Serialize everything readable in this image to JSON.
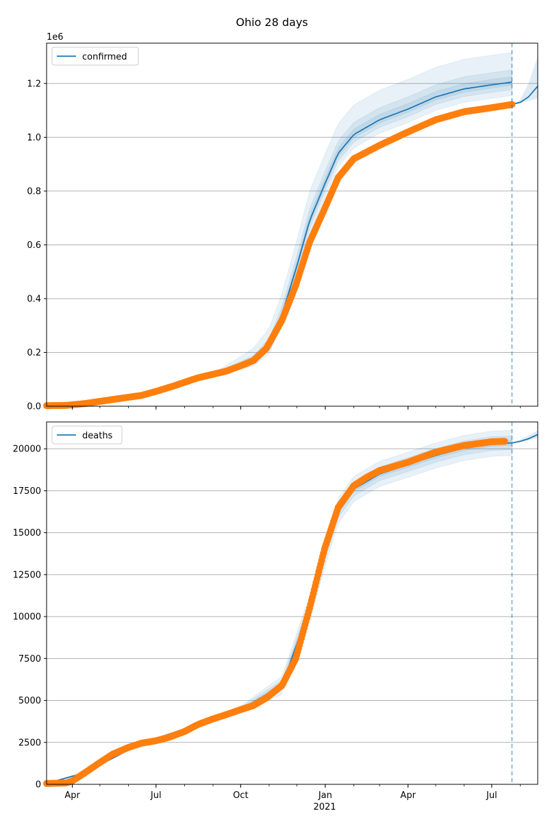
{
  "figure": {
    "title": "Ohio 28 days"
  },
  "colors": {
    "model": "#1f77b4",
    "observed": "#ff7f0e",
    "band": "#1f77b4",
    "grid": "#b0b0b0",
    "forecast_line": "#1f77b4"
  },
  "x_axis": {
    "ticks": [
      {
        "label": "Apr",
        "date": "2020-04-01"
      },
      {
        "label": "Jul",
        "date": "2020-07-01"
      },
      {
        "label": "Oct",
        "date": "2020-10-01"
      },
      {
        "label": "Jan",
        "date": "2021-01-01"
      },
      {
        "label": "Apr",
        "date": "2021-04-01"
      },
      {
        "label": "Jul",
        "date": "2021-07-01"
      }
    ],
    "year_label": "2021",
    "range": [
      "2020-03-04",
      "2021-08-20"
    ],
    "forecast_start": "2021-07-23"
  },
  "chart_data": [
    {
      "type": "line",
      "legend": "confirmed",
      "legend_position": "top-left",
      "grid": "horizontal",
      "exponent_label": "1e6",
      "ylim": [
        0,
        1350000
      ],
      "yticks": [
        {
          "value": 0,
          "label": "0.0"
        },
        {
          "value": 200000,
          "label": "0.2"
        },
        {
          "value": 400000,
          "label": "0.4"
        },
        {
          "value": 600000,
          "label": "0.6"
        },
        {
          "value": 800000,
          "label": "0.8"
        },
        {
          "value": 1000000,
          "label": "1.0"
        },
        {
          "value": 1200000,
          "label": "1.2"
        }
      ],
      "observed": {
        "x": [
          "2020-03-04",
          "2020-03-25",
          "2020-04-15",
          "2020-05-15",
          "2020-06-15",
          "2020-07-01",
          "2020-07-20",
          "2020-08-15",
          "2020-09-15",
          "2020-10-01",
          "2020-10-15",
          "2020-10-29",
          "2020-11-15",
          "2020-11-30",
          "2020-12-15",
          "2021-01-01",
          "2021-01-15",
          "2021-02-01",
          "2021-03-01",
          "2021-04-01",
          "2021-05-01",
          "2021-06-01",
          "2021-07-01",
          "2021-07-23"
        ],
        "y": [
          2000,
          3000,
          10000,
          25000,
          40000,
          55000,
          75000,
          105000,
          130000,
          150000,
          170000,
          215000,
          320000,
          450000,
          610000,
          740000,
          850000,
          920000,
          970000,
          1020000,
          1065000,
          1095000,
          1110000,
          1122000
        ]
      },
      "model": {
        "x": [
          "2020-03-04",
          "2020-04-15",
          "2020-06-15",
          "2020-07-20",
          "2020-08-15",
          "2020-09-15",
          "2020-10-15",
          "2020-11-01",
          "2020-11-15",
          "2020-12-01",
          "2020-12-15",
          "2021-01-01",
          "2021-01-15",
          "2021-02-01",
          "2021-03-01",
          "2021-04-01",
          "2021-05-01",
          "2021-06-01",
          "2021-07-01",
          "2021-07-23"
        ],
        "y": [
          2000,
          10000,
          40000,
          75000,
          110000,
          135000,
          170000,
          225000,
          340000,
          520000,
          690000,
          830000,
          940000,
          1010000,
          1065000,
          1105000,
          1150000,
          1180000,
          1195000,
          1205000
        ],
        "ci_50": {
          "lower_offset": 12000,
          "upper_offset": 20000
        },
        "ci_80": {
          "lower_offset": 28000,
          "upper_offset": 45000
        },
        "ci_95": {
          "lower_offset": 50000,
          "upper_offset": 110000
        }
      },
      "forecast": {
        "x": [
          "2021-07-23",
          "2021-08-01",
          "2021-08-10",
          "2021-08-20"
        ],
        "y": [
          1122000,
          1130000,
          1150000,
          1190000
        ],
        "lower": [
          1122000,
          1127000,
          1135000,
          1145000
        ],
        "upper": [
          1122000,
          1140000,
          1200000,
          1300000
        ]
      }
    },
    {
      "type": "line",
      "legend": "deaths",
      "legend_position": "top-left",
      "grid": "horizontal",
      "ylim": [
        0,
        21600
      ],
      "yticks": [
        {
          "value": 0,
          "label": "0"
        },
        {
          "value": 2500,
          "label": "2500"
        },
        {
          "value": 5000,
          "label": "5000"
        },
        {
          "value": 7500,
          "label": "7500"
        },
        {
          "value": 10000,
          "label": "10000"
        },
        {
          "value": 12500,
          "label": "12500"
        },
        {
          "value": 15000,
          "label": "15000"
        },
        {
          "value": 17500,
          "label": "17500"
        },
        {
          "value": 20000,
          "label": "20000"
        }
      ],
      "observed": {
        "x": [
          "2020-03-04",
          "2020-03-25",
          "2020-04-01",
          "2020-04-15",
          "2020-05-01",
          "2020-05-15",
          "2020-06-01",
          "2020-06-15",
          "2020-07-01",
          "2020-07-15",
          "2020-08-01",
          "2020-08-15",
          "2020-09-01",
          "2020-09-15",
          "2020-10-01",
          "2020-10-15",
          "2020-10-29",
          "2020-11-15",
          "2020-11-30",
          "2020-12-15",
          "2020-12-31",
          "2021-01-15",
          "2021-02-01",
          "2021-02-15",
          "2021-03-01",
          "2021-04-01",
          "2021-05-01",
          "2021-06-01",
          "2021-07-01",
          "2021-07-15"
        ],
        "y": [
          50,
          80,
          200,
          700,
          1300,
          1800,
          2200,
          2450,
          2600,
          2800,
          3150,
          3550,
          3900,
          4150,
          4450,
          4700,
          5150,
          5900,
          7500,
          10500,
          14000,
          16500,
          17800,
          18300,
          18700,
          19200,
          19800,
          20200,
          20420,
          20450
        ]
      },
      "model": {
        "x": [
          "2020-03-04",
          "2020-04-15",
          "2020-06-15",
          "2020-08-15",
          "2020-10-01",
          "2020-11-15",
          "2020-12-15",
          "2021-01-01",
          "2021-01-15",
          "2021-02-01",
          "2021-03-01",
          "2021-04-01",
          "2021-05-01",
          "2021-06-01",
          "2021-07-01",
          "2021-07-23"
        ],
        "y": [
          50,
          700,
          2450,
          3550,
          4450,
          5900,
          10500,
          13800,
          16300,
          17600,
          18500,
          19050,
          19600,
          20050,
          20300,
          20350
        ],
        "ci_50": {
          "lower_offset": 150,
          "upper_offset": 180
        },
        "ci_80": {
          "lower_offset": 400,
          "upper_offset": 420
        },
        "ci_95": {
          "lower_offset": 750,
          "upper_offset": 750
        }
      },
      "forecast": {
        "x": [
          "2021-07-23",
          "2021-08-01",
          "2021-08-10",
          "2021-08-20"
        ],
        "y": [
          20350,
          20450,
          20600,
          20850
        ],
        "lower": [
          20350,
          20400,
          20500,
          20650
        ],
        "upper": [
          20350,
          20550,
          20800,
          21100
        ]
      }
    }
  ]
}
